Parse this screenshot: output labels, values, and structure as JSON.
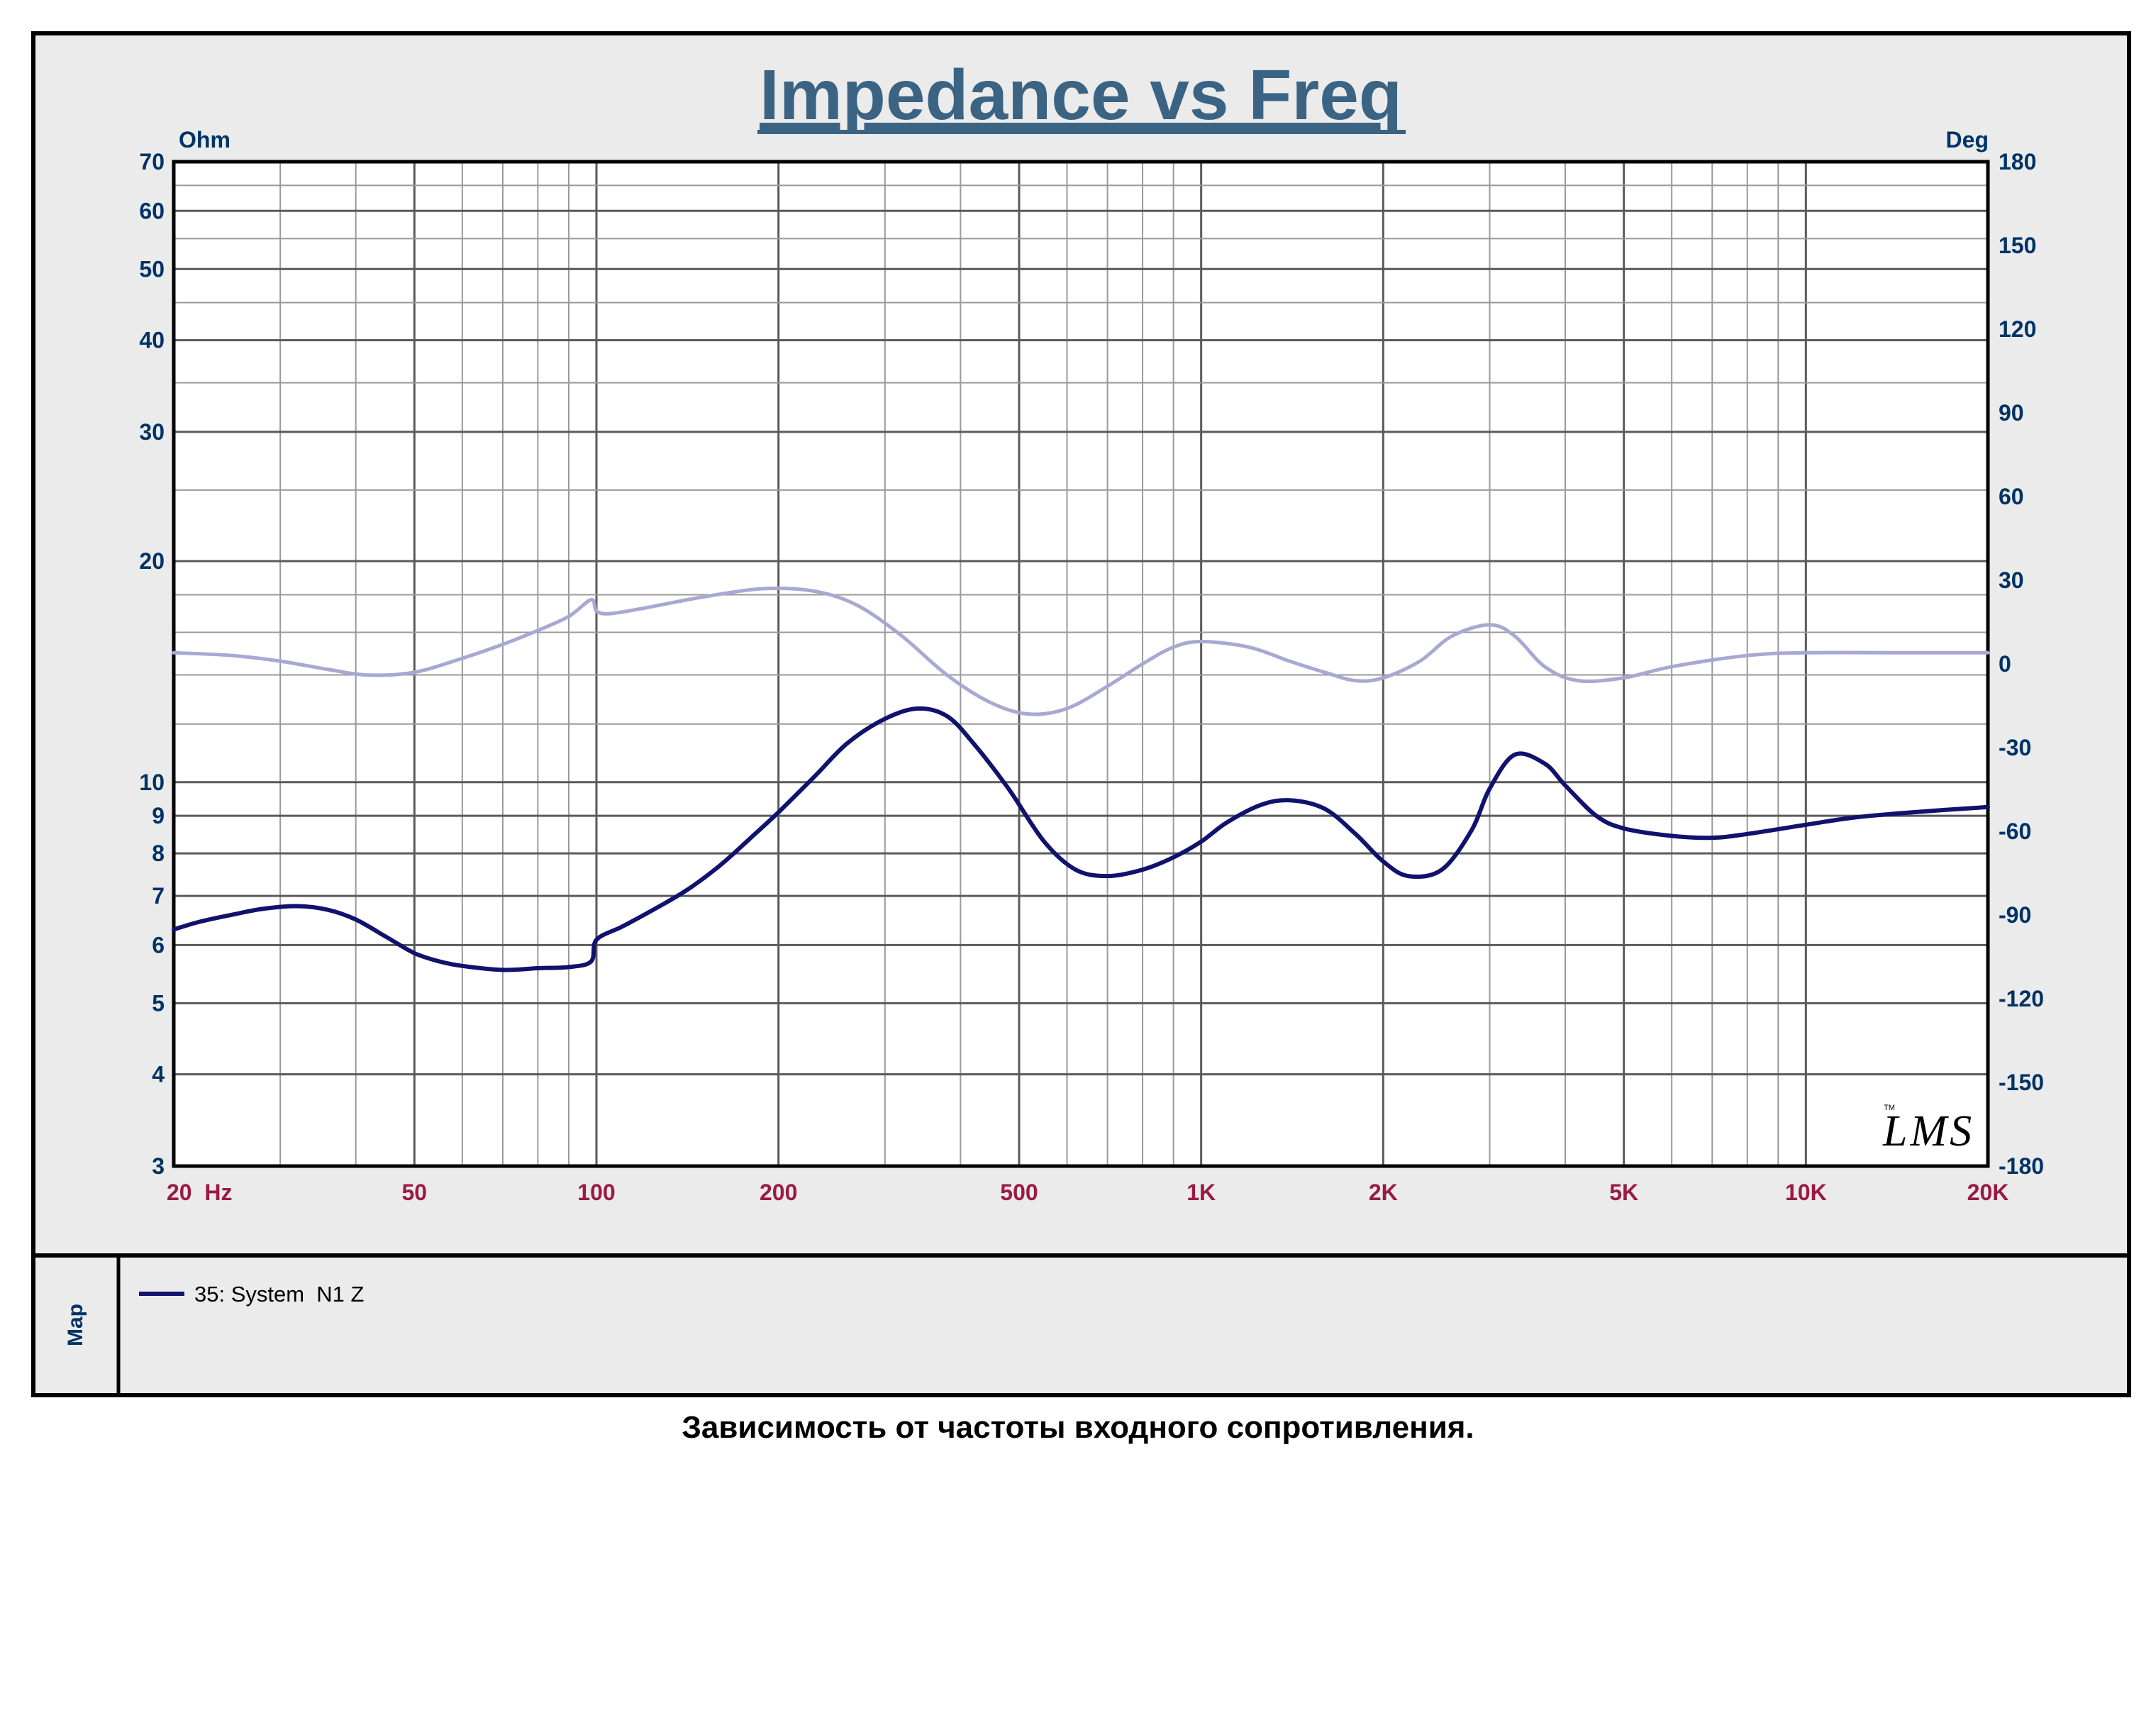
{
  "chart_data": {
    "type": "line",
    "title": "Impedance vs Freq",
    "y_left_unit": "Ohm",
    "y_right_unit": "Deg",
    "x_scale": "log",
    "y_left_scale": "log",
    "xlim": [
      20,
      20000
    ],
    "ylim_left": [
      3,
      70
    ],
    "ylim_right": [
      -180,
      180
    ],
    "grid": true,
    "x_ticks": [
      {
        "value": 20,
        "label": "20  Hz"
      },
      {
        "value": 50,
        "label": "50"
      },
      {
        "value": 100,
        "label": "100"
      },
      {
        "value": 200,
        "label": "200"
      },
      {
        "value": 500,
        "label": "500"
      },
      {
        "value": 1000,
        "label": "1K"
      },
      {
        "value": 2000,
        "label": "2K"
      },
      {
        "value": 5000,
        "label": "5K"
      },
      {
        "value": 10000,
        "label": "10K"
      },
      {
        "value": 20000,
        "label": "20K"
      }
    ],
    "y_left_ticks": [
      {
        "value": 70,
        "label": "70"
      },
      {
        "value": 60,
        "label": "60"
      },
      {
        "value": 50,
        "label": "50"
      },
      {
        "value": 40,
        "label": "40"
      },
      {
        "value": 30,
        "label": "30"
      },
      {
        "value": 20,
        "label": "20"
      },
      {
        "value": 10,
        "label": "10"
      },
      {
        "value": 9,
        "label": "9"
      },
      {
        "value": 8,
        "label": "8"
      },
      {
        "value": 7,
        "label": "7"
      },
      {
        "value": 6,
        "label": "6"
      },
      {
        "value": 5,
        "label": "5"
      },
      {
        "value": 4,
        "label": "4"
      },
      {
        "value": 3,
        "label": "3"
      }
    ],
    "y_right_ticks": [
      {
        "value": 180,
        "label": "180"
      },
      {
        "value": 150,
        "label": "150"
      },
      {
        "value": 120,
        "label": "120"
      },
      {
        "value": 90,
        "label": "90"
      },
      {
        "value": 60,
        "label": "60"
      },
      {
        "value": 30,
        "label": "30"
      },
      {
        "value": 0,
        "label": "0"
      },
      {
        "value": -30,
        "label": "-30"
      },
      {
        "value": -60,
        "label": "-60"
      },
      {
        "value": -90,
        "label": "-90"
      },
      {
        "value": -120,
        "label": "-120"
      },
      {
        "value": -150,
        "label": "-150"
      },
      {
        "value": -180,
        "label": "-180"
      }
    ],
    "series": [
      {
        "name": "35: System  N1 Z",
        "axis": "left",
        "color": "#10126e",
        "x": [
          20,
          22,
          25,
          28,
          32,
          36,
          40,
          45,
          50,
          55,
          60,
          70,
          80,
          90,
          98,
          100,
          110,
          120,
          140,
          160,
          180,
          200,
          230,
          260,
          300,
          340,
          380,
          420,
          480,
          550,
          620,
          700,
          800,
          900,
          1000,
          1100,
          1250,
          1400,
          1600,
          1800,
          2000,
          2200,
          2500,
          2800,
          3000,
          3300,
          3700,
          4000,
          4500,
          5000,
          6000,
          7000,
          8000,
          10000,
          12000,
          15000,
          20000
        ],
        "y": [
          6.3,
          6.45,
          6.6,
          6.72,
          6.78,
          6.7,
          6.5,
          6.15,
          5.85,
          5.7,
          5.62,
          5.55,
          5.58,
          5.6,
          5.7,
          6.1,
          6.35,
          6.6,
          7.1,
          7.7,
          8.4,
          9.1,
          10.2,
          11.3,
          12.2,
          12.6,
          12.3,
          11.3,
          9.8,
          8.3,
          7.6,
          7.45,
          7.6,
          7.9,
          8.3,
          8.8,
          9.3,
          9.45,
          9.2,
          8.5,
          7.8,
          7.45,
          7.6,
          8.6,
          9.8,
          10.9,
          10.6,
          9.9,
          9.0,
          8.65,
          8.45,
          8.4,
          8.5,
          8.75,
          8.95,
          9.1,
          9.25
        ]
      },
      {
        "axis": "right",
        "color": "#a7a9d3",
        "x": [
          20,
          25,
          30,
          36,
          42,
          50,
          60,
          70,
          80,
          90,
          98,
          100,
          105,
          120,
          150,
          190,
          230,
          270,
          320,
          380,
          450,
          520,
          600,
          700,
          800,
          900,
          1000,
          1200,
          1400,
          1600,
          1800,
          2000,
          2300,
          2600,
          3000,
          3300,
          3700,
          4200,
          5000,
          6000,
          8000,
          10000,
          15000,
          20000
        ],
        "y": [
          4,
          3,
          1,
          -2,
          -4,
          -3,
          2,
          7,
          12,
          17,
          23,
          19,
          18,
          20,
          24,
          27,
          26,
          21,
          10,
          -4,
          -14,
          -18,
          -16,
          -8,
          0,
          6,
          8,
          6,
          1,
          -3,
          -6,
          -5,
          1,
          10,
          14,
          10,
          -1,
          -6,
          -5,
          -1,
          3,
          4,
          4,
          4
        ]
      }
    ]
  },
  "legend": {
    "panel_label": "Map",
    "entries": [
      {
        "label": "35: System  N1 Z",
        "color": "#10126e"
      }
    ]
  },
  "logo_text": "LMS",
  "caption": "Зависимость от частоты входного сопротивления.",
  "colors": {
    "frame_bg": "#ebebeb",
    "title_color": "#3b6383",
    "axis_label_color": "#003366",
    "x_tick_color": "#9b1a43",
    "grid_color": "#888888",
    "impedance_color": "#10126e",
    "phase_color": "#a7a9d3"
  }
}
